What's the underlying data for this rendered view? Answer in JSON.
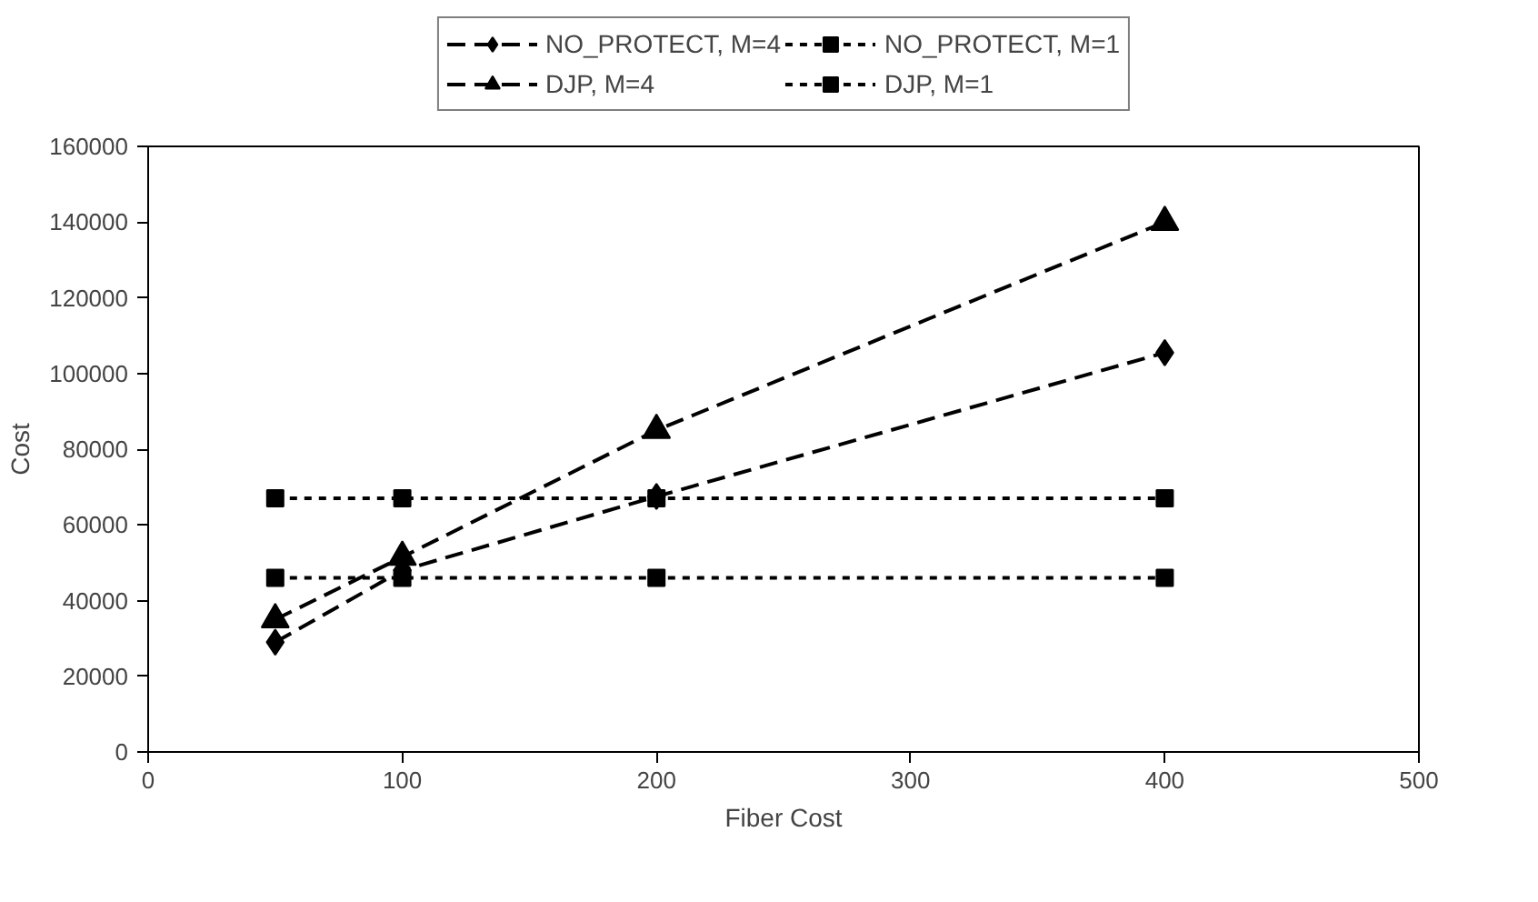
{
  "chart_data": {
    "type": "line",
    "xlabel": "Fiber Cost",
    "ylabel": "Cost",
    "x": [
      50,
      100,
      200,
      400
    ],
    "series": [
      {
        "name": "NO_PROTECT, M=4",
        "color": "#000000",
        "marker": "diamond",
        "line_style": "dashed",
        "values": [
          29000,
          48000,
          67500,
          105500
        ]
      },
      {
        "name": "DJP, M=4",
        "color": "#000000",
        "marker": "triangle",
        "line_style": "dashed",
        "values": [
          35000,
          51500,
          85000,
          140000
        ]
      },
      {
        "name": "NO_PROTECT, M=1",
        "color": "#000000",
        "marker": "square",
        "line_style": "dotted",
        "values": [
          46000,
          46000,
          46000,
          46000
        ]
      },
      {
        "name": "DJP, M=1",
        "color": "#000000",
        "marker": "square",
        "line_style": "dotted",
        "values": [
          67000,
          67000,
          67000,
          67000
        ]
      }
    ],
    "xlim": [
      0,
      500
    ],
    "xticks": [
      0,
      100,
      200,
      300,
      400,
      500
    ],
    "ylim": [
      0,
      160000
    ],
    "yticks": [
      0,
      20000,
      40000,
      60000,
      80000,
      100000,
      120000,
      140000,
      160000
    ],
    "grid": false,
    "legend": "top"
  }
}
